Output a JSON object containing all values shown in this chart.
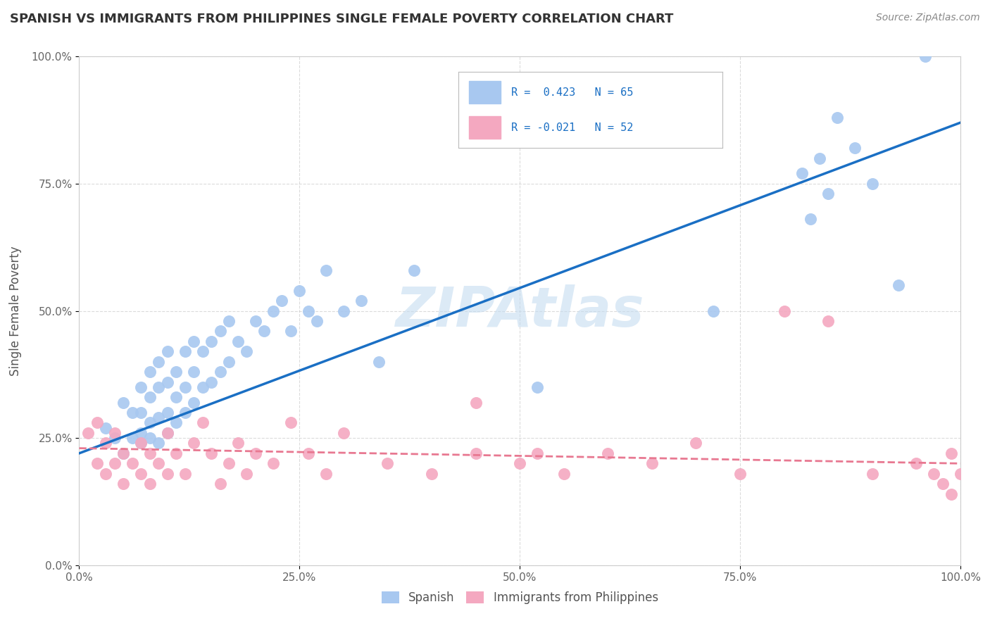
{
  "title": "SPANISH VS IMMIGRANTS FROM PHILIPPINES SINGLE FEMALE POVERTY CORRELATION CHART",
  "source": "Source: ZipAtlas.com",
  "ylabel": "Single Female Poverty",
  "watermark": "ZIPAtlas",
  "legend_blue_r": "R =  0.423",
  "legend_blue_n": "N = 65",
  "legend_pink_r": "R = -0.021",
  "legend_pink_n": "N = 52",
  "legend_blue_label": "Spanish",
  "legend_pink_label": "Immigrants from Philippines",
  "xlim": [
    0,
    100
  ],
  "ylim": [
    0,
    100
  ],
  "x_ticks": [
    0,
    25,
    50,
    75,
    100
  ],
  "y_ticks": [
    0,
    25,
    50,
    75,
    100
  ],
  "x_tick_labels": [
    "0.0%",
    "25.0%",
    "50.0%",
    "75.0%",
    "100.0%"
  ],
  "y_tick_labels": [
    "0.0%",
    "25.0%",
    "50.0%",
    "75.0%",
    "100.0%"
  ],
  "blue_color": "#A8C8F0",
  "pink_color": "#F4A8C0",
  "trendline_blue_color": "#1A6FC4",
  "trendline_pink_color": "#E87891",
  "background_color": "#FFFFFF",
  "grid_color": "#CCCCCC",
  "blue_scatter_x": [
    3,
    4,
    5,
    5,
    6,
    6,
    7,
    7,
    7,
    7,
    8,
    8,
    8,
    8,
    9,
    9,
    9,
    9,
    10,
    10,
    10,
    10,
    11,
    11,
    11,
    12,
    12,
    12,
    13,
    13,
    13,
    14,
    14,
    15,
    15,
    16,
    16,
    17,
    17,
    18,
    19,
    20,
    21,
    22,
    23,
    24,
    25,
    26,
    27,
    28,
    30,
    32,
    34,
    38,
    52,
    72,
    82,
    83,
    84,
    85,
    86,
    88,
    90,
    93,
    96
  ],
  "blue_scatter_y": [
    27,
    25,
    22,
    32,
    25,
    30,
    24,
    26,
    30,
    35,
    25,
    28,
    33,
    38,
    24,
    29,
    35,
    40,
    26,
    30,
    36,
    42,
    28,
    33,
    38,
    30,
    35,
    42,
    32,
    38,
    44,
    35,
    42,
    36,
    44,
    38,
    46,
    40,
    48,
    44,
    42,
    48,
    46,
    50,
    52,
    46,
    54,
    50,
    48,
    58,
    50,
    52,
    40,
    58,
    35,
    50,
    77,
    68,
    80,
    73,
    88,
    82,
    75,
    55,
    100
  ],
  "pink_scatter_x": [
    1,
    2,
    2,
    3,
    3,
    4,
    4,
    5,
    5,
    6,
    7,
    7,
    8,
    8,
    9,
    10,
    10,
    11,
    12,
    13,
    14,
    15,
    16,
    17,
    18,
    19,
    20,
    22,
    24,
    26,
    28,
    30,
    35,
    40,
    45,
    50,
    55,
    60,
    65,
    70,
    75,
    80,
    85,
    90,
    95,
    97,
    98,
    99,
    99,
    100,
    45,
    52
  ],
  "pink_scatter_y": [
    26,
    20,
    28,
    18,
    24,
    20,
    26,
    16,
    22,
    20,
    18,
    24,
    16,
    22,
    20,
    18,
    26,
    22,
    18,
    24,
    28,
    22,
    16,
    20,
    24,
    18,
    22,
    20,
    28,
    22,
    18,
    26,
    20,
    18,
    22,
    20,
    18,
    22,
    20,
    24,
    18,
    50,
    48,
    18,
    20,
    18,
    16,
    14,
    22,
    18,
    32,
    22
  ],
  "blue_trend_x": [
    0,
    100
  ],
  "blue_trend_y": [
    22,
    87
  ],
  "pink_trend_x": [
    0,
    100
  ],
  "pink_trend_y": [
    23,
    20
  ]
}
